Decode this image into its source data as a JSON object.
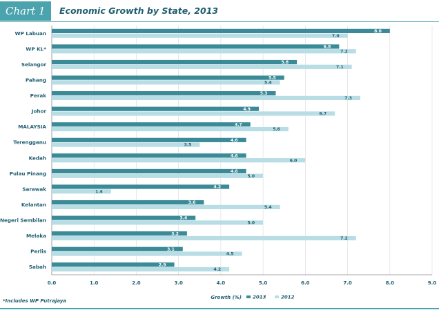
{
  "header": {
    "chart_label": "Chart 1",
    "title": "Economic Growth by State, 2013"
  },
  "footnote": "*Includes WP Putrajaya",
  "colors": {
    "series_2013": "#3b8a98",
    "series_2012": "#b8dde5",
    "accent": "#4aa3ad",
    "text": "#1f5d70"
  },
  "chart_data": {
    "type": "bar",
    "orientation": "horizontal",
    "title": "Economic Growth by State, 2013",
    "xlabel": "Growth (%)",
    "ylabel": "",
    "xlim": [
      0,
      9
    ],
    "xticks": [
      "0.0",
      "1.0",
      "2.0",
      "3.0",
      "4.0",
      "5.0",
      "6.0",
      "7.0",
      "8.0",
      "9.0"
    ],
    "legend_position": "bottom",
    "categories": [
      "WP Labuan",
      "WP KL*",
      "Selangor",
      "Pahang",
      "Perak",
      "Johor",
      "MALAYSIA",
      "Terengganu",
      "Kedah",
      "Pulau Pinang",
      "Sarawak",
      "Kelantan",
      "Negeri Sembilan",
      "Melaka",
      "Perlis",
      "Sabah"
    ],
    "series": [
      {
        "name": "2013",
        "values": [
          8.0,
          6.8,
          5.8,
          5.5,
          5.3,
          4.9,
          4.7,
          4.6,
          4.6,
          4.6,
          4.2,
          3.6,
          3.4,
          3.2,
          3.1,
          2.9
        ]
      },
      {
        "name": "2012",
        "values": [
          7.0,
          7.2,
          7.1,
          5.4,
          7.3,
          6.7,
          5.6,
          3.5,
          6.0,
          5.0,
          1.4,
          5.4,
          5.0,
          7.2,
          4.5,
          4.2
        ]
      }
    ]
  }
}
